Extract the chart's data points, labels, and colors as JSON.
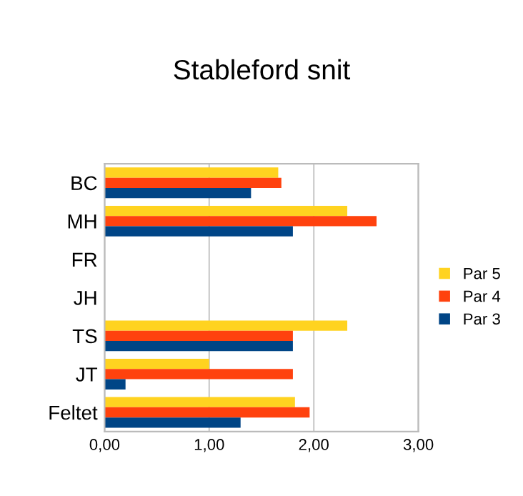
{
  "chart_data": {
    "type": "bar",
    "orientation": "horizontal",
    "title": "Stableford snit",
    "categories": [
      "BC",
      "MH",
      "FR",
      "JH",
      "TS",
      "JT",
      "Feltet"
    ],
    "series": [
      {
        "name": "Par 5",
        "color": "#ffd320",
        "values": [
          1.66,
          2.32,
          null,
          null,
          2.32,
          1.0,
          1.82
        ]
      },
      {
        "name": "Par 4",
        "color": "#ff420e",
        "values": [
          1.69,
          2.6,
          null,
          null,
          1.8,
          1.8,
          1.96
        ]
      },
      {
        "name": "Par 3",
        "color": "#004586",
        "values": [
          1.4,
          1.8,
          null,
          null,
          1.8,
          0.2,
          1.3
        ]
      }
    ],
    "xlim": [
      0,
      3
    ],
    "xticks": [
      {
        "value": 0,
        "label": "0,00"
      },
      {
        "value": 1,
        "label": "1,00"
      },
      {
        "value": 2,
        "label": "2,00"
      },
      {
        "value": 3,
        "label": "3,00"
      }
    ],
    "grid": "x",
    "legend": "right"
  }
}
